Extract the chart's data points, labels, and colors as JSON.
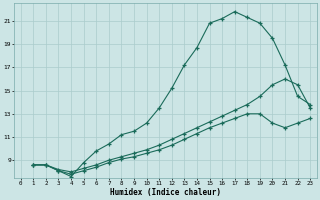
{
  "xlabel": "Humidex (Indice chaleur)",
  "bg_color": "#cce5e5",
  "grid_color": "#aacccc",
  "line_color": "#1a6b5a",
  "xlim": [
    -0.5,
    23.5
  ],
  "ylim": [
    7.5,
    22.5
  ],
  "yticks": [
    9,
    11,
    13,
    15,
    17,
    19,
    21
  ],
  "xticks": [
    0,
    1,
    2,
    3,
    4,
    5,
    6,
    7,
    8,
    9,
    10,
    11,
    12,
    13,
    14,
    15,
    16,
    17,
    18,
    19,
    20,
    21,
    22,
    23
  ],
  "line1_x": [
    1,
    2,
    3,
    4,
    5,
    6,
    7,
    8,
    9,
    10,
    11,
    12,
    13,
    14,
    15,
    16,
    17,
    18,
    19,
    20,
    21,
    22,
    23
  ],
  "line1_y": [
    8.6,
    8.6,
    8.1,
    7.6,
    8.8,
    9.8,
    10.4,
    11.2,
    11.5,
    12.2,
    13.5,
    15.2,
    17.2,
    18.7,
    20.8,
    21.2,
    21.8,
    21.3,
    20.8,
    19.5,
    17.2,
    14.5,
    13.8
  ],
  "line2_x": [
    1,
    2,
    3,
    4,
    5,
    6,
    7,
    8,
    9,
    10,
    11,
    12,
    13,
    14,
    15,
    16,
    17,
    18,
    19,
    20,
    21,
    22,
    23
  ],
  "line2_y": [
    8.6,
    8.6,
    8.2,
    8.0,
    8.3,
    8.6,
    9.0,
    9.3,
    9.6,
    9.9,
    10.3,
    10.8,
    11.3,
    11.8,
    12.3,
    12.8,
    13.3,
    13.8,
    14.5,
    15.5,
    16.0,
    15.5,
    13.5
  ],
  "line3_x": [
    1,
    2,
    3,
    4,
    5,
    6,
    7,
    8,
    9,
    10,
    11,
    12,
    13,
    14,
    15,
    16,
    17,
    18,
    19,
    20,
    21,
    22,
    23
  ],
  "line3_y": [
    8.6,
    8.6,
    8.1,
    7.8,
    8.1,
    8.4,
    8.8,
    9.1,
    9.3,
    9.6,
    9.9,
    10.3,
    10.8,
    11.3,
    11.8,
    12.2,
    12.6,
    13.0,
    13.0,
    12.2,
    11.8,
    12.2,
    12.6
  ]
}
